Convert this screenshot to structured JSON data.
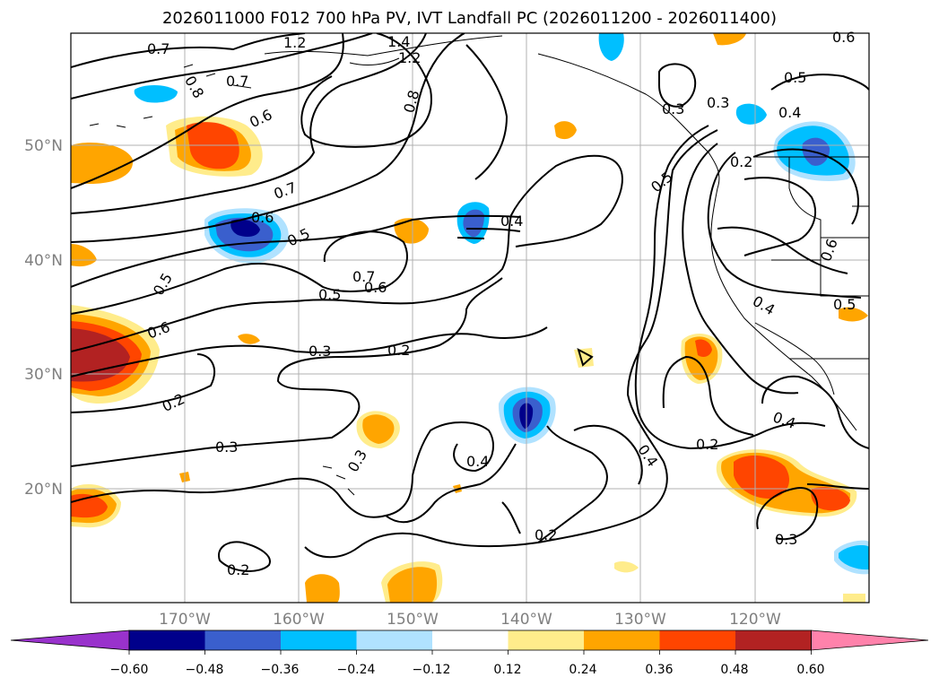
{
  "title": "2026011000 F012 700 hPa PV, IVT Landfall PC (2026011200 - 2026011400)",
  "map": {
    "lon_labels": [
      "170°W",
      "160°W",
      "150°W",
      "140°W",
      "130°W",
      "120°W"
    ],
    "lat_labels": [
      "50°N",
      "40°N",
      "30°N",
      "20°N"
    ],
    "contour_labels": [
      "0.7",
      "1.2",
      "1.4",
      "1.2",
      "0.8",
      "0.8",
      "0.7",
      "0.6",
      "0.7",
      "0.6",
      "0.5",
      "0.5",
      "0.6",
      "0.7",
      "0.6",
      "0.5",
      "0.4",
      "0.3",
      "0.2",
      "0.2",
      "0.3",
      "0.3",
      "0.4",
      "0.4",
      "0.2",
      "0.2",
      "0.5",
      "0.3",
      "0.3",
      "0.4",
      "0.2",
      "0.5",
      "0.4",
      "0.5",
      "0.4",
      "0.2",
      "0.6",
      "0.3",
      "0.6"
    ]
  },
  "colorbar": {
    "tick_labels": [
      "−0.60",
      "−0.48",
      "−0.36",
      "−0.24",
      "−0.12",
      "0.12",
      "0.24",
      "0.36",
      "0.48",
      "0.60"
    ],
    "colors": [
      "#9932cc",
      "#00008b",
      "#3a5fcd",
      "#00bfff",
      "#b0e2ff",
      "#ffffff",
      "#ffec8b",
      "#ffa500",
      "#ff4500",
      "#b22222",
      "#ff82ab"
    ]
  }
}
